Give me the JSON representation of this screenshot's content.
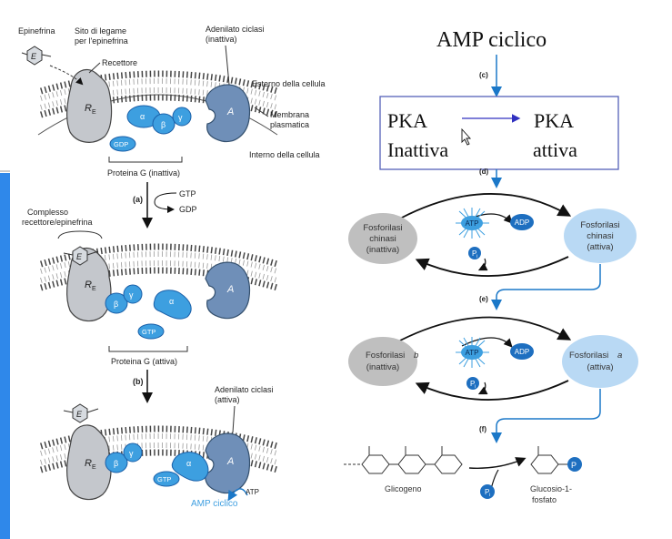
{
  "left_panel": {
    "epinephrine_label": "Epinefrina",
    "binding_site_label_1": "Sito di legame",
    "binding_site_label_2": "per l'epinefrina",
    "receptor_label": "Recettore",
    "adenylate_inactive_1": "Adenilato ciclasi",
    "adenylate_inactive_2": "(inattiva)",
    "cell_exterior": "Esterno della cellula",
    "membrane_1": "Membrana",
    "membrane_2": "plasmatica",
    "cell_interior": "Interno della cellula",
    "e_glyph": "E",
    "receptor_glyph": "R",
    "receptor_sub": "E",
    "adenylate_glyph": "A",
    "alpha": "α",
    "beta": "β",
    "gamma": "γ",
    "gdp": "GDP",
    "gtp": "GTP",
    "g_protein_inactive": "Proteina G (inattiva)",
    "step_a": "(a)",
    "step_a_gtp": "GTP",
    "step_a_gdp": "GDP",
    "complex_label_1": "Complesso",
    "complex_label_2": "recettore/epinefrina",
    "g_protein_active": "Proteina G (attiva)",
    "step_b": "(b)",
    "adenylate_active_1": "Adenilato ciclasi",
    "adenylate_active_2": "(attiva)",
    "atp": "ATP",
    "camp": "AMP ciclico"
  },
  "right_panel": {
    "camp_title": "AMP ciclico",
    "step_c": "(c)",
    "pka_inactive_1": "PKA",
    "pka_inactive_2": "Inattiva",
    "pka_active_1": "PKA",
    "pka_active_2": "attiva",
    "step_d": "(d)",
    "kinase_inactive_1": "Fosforilasi",
    "kinase_inactive_2": "chinasi",
    "kinase_inactive_3": "(inattiva)",
    "kinase_active_1": "Fosforilasi",
    "kinase_active_2": "chinasi",
    "kinase_active_3": "(attiva)",
    "atp": "ATP",
    "adp": "ADP",
    "pi": "P",
    "pi_sub": "i",
    "step_e": "(e)",
    "phos_b_1": "Fosforilasi",
    "phos_b_letter": "b",
    "phos_b_2": "(inattiva)",
    "phos_a_1": "Fosforilasi",
    "phos_a_letter": "a",
    "phos_a_2": "(attiva)",
    "step_f": "(f)",
    "glycogen": "Glicogeno",
    "g1p_1": "Glucosio-1-",
    "g1p_2": "fosfato",
    "p_glyph": "P"
  },
  "colors": {
    "accent_blue": "#3f9fe0",
    "dark_blue": "#1a5fa8",
    "receptor_gray": "#c4c7cc",
    "adenylate_blue": "#6f8fb8",
    "left_bar_blue": "#2f88ea",
    "box_border": "#5560b8"
  }
}
